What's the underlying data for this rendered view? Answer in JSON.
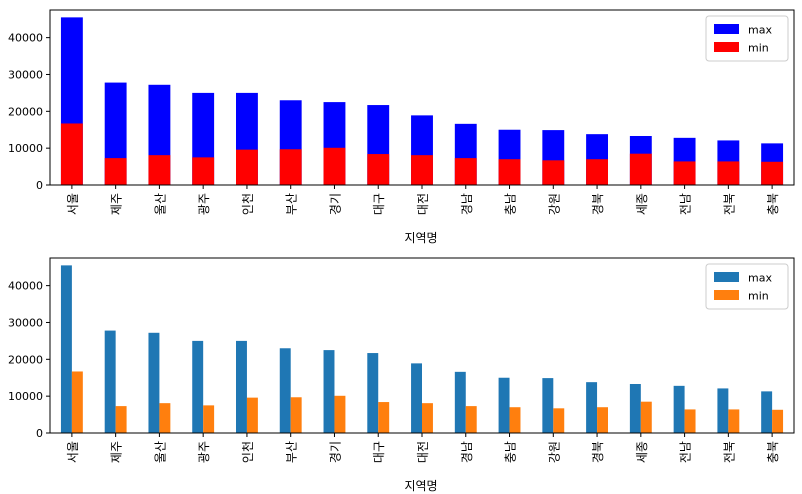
{
  "chart_data": [
    {
      "type": "bar",
      "mode": "stacked-overlay",
      "categories": [
        "서울",
        "제주",
        "울산",
        "광주",
        "인천",
        "부산",
        "경기",
        "대구",
        "대전",
        "경남",
        "충남",
        "강원",
        "경북",
        "세종",
        "전남",
        "전북",
        "충북"
      ],
      "series": [
        {
          "name": "max",
          "color": "#0000ff",
          "values": [
            45500,
            27800,
            27200,
            25000,
            25000,
            23000,
            22500,
            21700,
            18900,
            16600,
            15000,
            14900,
            13800,
            13300,
            12800,
            12100,
            11300
          ]
        },
        {
          "name": "min",
          "color": "#ff0000",
          "values": [
            16700,
            7300,
            8100,
            7500,
            9600,
            9700,
            10100,
            8400,
            8100,
            7300,
            7000,
            6700,
            7000,
            8500,
            6400,
            6400,
            6300
          ]
        }
      ],
      "xlabel": "지역명",
      "ylabel": "",
      "ylim": [
        0,
        47500
      ],
      "yticks": [
        0,
        10000,
        20000,
        30000,
        40000
      ],
      "legend": "top-right",
      "grid": false
    },
    {
      "type": "bar",
      "mode": "grouped",
      "categories": [
        "서울",
        "제주",
        "울산",
        "광주",
        "인천",
        "부산",
        "경기",
        "대구",
        "대전",
        "경남",
        "충남",
        "강원",
        "경북",
        "세종",
        "전남",
        "전북",
        "충북"
      ],
      "series": [
        {
          "name": "max",
          "color": "#1f77b4",
          "values": [
            45500,
            27800,
            27200,
            25000,
            25000,
            23000,
            22500,
            21700,
            18900,
            16600,
            15000,
            14900,
            13800,
            13300,
            12800,
            12100,
            11300
          ]
        },
        {
          "name": "min",
          "color": "#ff7f0e",
          "values": [
            16700,
            7300,
            8100,
            7500,
            9600,
            9700,
            10100,
            8400,
            8100,
            7300,
            7000,
            6700,
            7000,
            8500,
            6400,
            6400,
            6300
          ]
        }
      ],
      "xlabel": "지역명",
      "ylabel": "",
      "ylim": [
        0,
        47500
      ],
      "yticks": [
        0,
        10000,
        20000,
        30000,
        40000
      ],
      "legend": "top-right",
      "grid": false
    }
  ]
}
